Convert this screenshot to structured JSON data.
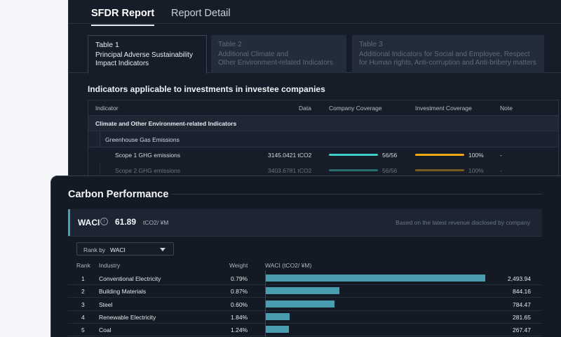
{
  "tabs": [
    {
      "label": "SFDR Report",
      "active": true
    },
    {
      "label": "Report Detail",
      "active": false
    }
  ],
  "subtabs": [
    {
      "title": "Table 1",
      "desc_line1": "Principal Adverse Sustainability",
      "desc_line2": "Impact Indicators",
      "active": true
    },
    {
      "title": "Table 2",
      "desc_line1": "Additional Climate and",
      "desc_line2": "Other Environment-related Indicators",
      "active": false
    },
    {
      "title": "Table 3",
      "desc_line1": "Additional Indicators for Social and Employee, Respect",
      "desc_line2": "for Human rights, Anti-corruption and Anti-bribery matters",
      "active": false
    }
  ],
  "section_heading": "Indicators applicable to investments in investee companies",
  "indicator_table": {
    "headers": {
      "indicator": "Indicator",
      "data": "Data",
      "company_coverage": "Company Coverage",
      "investment_coverage": "Investment Coverage",
      "note": "Note"
    },
    "category": "Climate and Other Environment-related Indicators",
    "subcategory": "Greenhouse Gas Emissions",
    "rows": [
      {
        "indicator": "Scope 1 GHG emissions",
        "data": "3145.0421 tCO2",
        "company_coverage": "56/56",
        "company_coverage_fraction": 1.0,
        "investment_coverage": "100%",
        "investment_coverage_fraction": 1.0,
        "note": "-"
      },
      {
        "indicator": "Scope 2 GHG emissions",
        "data": "3403.6781 tCO2",
        "company_coverage": "56/56",
        "company_coverage_fraction": 1.0,
        "investment_coverage": "100%",
        "investment_coverage_fraction": 1.0,
        "note": "-"
      }
    ]
  },
  "carbon": {
    "title": "Carbon Performance",
    "waci_label": "WACI",
    "waci_value": "61.89",
    "waci_unit": "tCO2/ ¥M",
    "waci_note": "Based on the latest revenue disclosed by company",
    "rank_by_label": "Rank by",
    "rank_by_value": "WACI",
    "columns": {
      "rank": "Rank",
      "industry": "Industry",
      "weight": "Weight",
      "waci": "WACI (tCO2/ ¥M)"
    },
    "rows": [
      {
        "rank": "1",
        "industry": "Conventional Electricity",
        "weight": "0.79%",
        "waci": "2,493.94",
        "waci_num": 2493.94
      },
      {
        "rank": "2",
        "industry": "Building Materials",
        "weight": "0.87%",
        "waci": "844.16",
        "waci_num": 844.16
      },
      {
        "rank": "3",
        "industry": "Steel",
        "weight": "0.60%",
        "waci": "784.47",
        "waci_num": 784.47
      },
      {
        "rank": "4",
        "industry": "Renewable Electricity",
        "weight": "1.84%",
        "waci": "281.65",
        "waci_num": 281.65
      },
      {
        "rank": "5",
        "industry": "Coal",
        "weight": "1.24%",
        "waci": "267.47",
        "waci_num": 267.47
      }
    ]
  },
  "colors": {
    "company_bar": "#3ed0c7",
    "investment_bar": "#f2a813",
    "waci_bar": "#4a9db0",
    "accent": "#44a2b6"
  }
}
